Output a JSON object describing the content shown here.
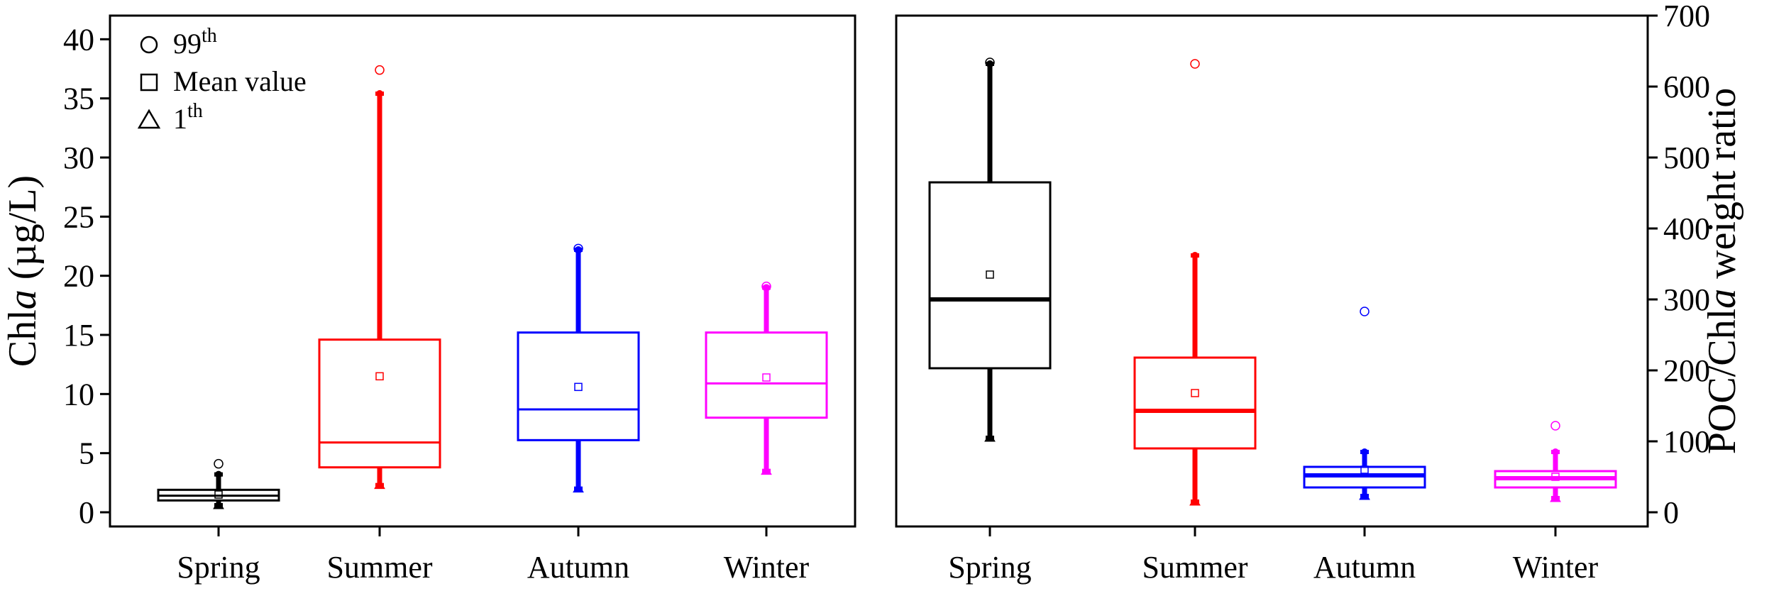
{
  "chart_data": [
    {
      "type": "box",
      "panel": "left",
      "categories": [
        "Spring",
        "Summer",
        "Autumn",
        "Winter"
      ],
      "ylabel_prefix": "Chl",
      "ylabel_italic": "a",
      "ylabel_suffix": " (µg/L)",
      "ylim": [
        -1.2,
        42
      ],
      "yticks": [
        0,
        5,
        10,
        15,
        20,
        25,
        30,
        35,
        40
      ],
      "ytick_labels": [
        "0",
        "5",
        "10",
        "15",
        "20",
        "25",
        "30",
        "35",
        "40"
      ],
      "axis_side": "left",
      "legend": {
        "placement": "top-left",
        "items": [
          {
            "marker": "circle",
            "label": "99",
            "sup": "th"
          },
          {
            "marker": "square",
            "label": "Mean value",
            "sup": ""
          },
          {
            "marker": "triangle",
            "label": "1",
            "sup": "th"
          }
        ]
      },
      "boxes": [
        {
          "name": "Spring",
          "color": "#000000",
          "q1": 1.0,
          "median": 1.4,
          "q3": 1.9,
          "whisker_low": 0.6,
          "whisker_high": 3.2,
          "mean": 1.5,
          "p99": 4.1,
          "p1": 0.6,
          "heavy_median": false
        },
        {
          "name": "Summer",
          "color": "#ff0000",
          "q1": 3.8,
          "median": 5.9,
          "q3": 14.6,
          "whisker_low": 2.3,
          "whisker_high": 35.4,
          "mean": 11.5,
          "p99": 37.4,
          "p1": 2.3,
          "heavy_median": false
        },
        {
          "name": "Autumn",
          "color": "#0000ff",
          "q1": 6.1,
          "median": 8.7,
          "q3": 15.2,
          "whisker_low": 2.0,
          "whisker_high": 22.2,
          "mean": 10.6,
          "p99": 22.3,
          "p1": 2.0,
          "heavy_median": false
        },
        {
          "name": "Winter",
          "color": "#ff00ff",
          "q1": 8.0,
          "median": 10.9,
          "q3": 15.2,
          "whisker_low": 3.5,
          "whisker_high": 19.0,
          "mean": 11.4,
          "p99": 19.1,
          "p1": 3.5,
          "heavy_median": false
        }
      ]
    },
    {
      "type": "box",
      "panel": "right",
      "categories": [
        "Spring",
        "Summer",
        "Autumn",
        "Winter"
      ],
      "ylabel_prefix": "POC/Chl",
      "ylabel_italic": "a",
      "ylabel_suffix": " weight ratio",
      "ylim": [
        -20,
        700
      ],
      "yticks": [
        0,
        100,
        200,
        300,
        400,
        500,
        600,
        700
      ],
      "ytick_labels": [
        "0",
        "100",
        "200",
        "300",
        "400",
        "500",
        "600",
        "700"
      ],
      "axis_side": "right",
      "boxes": [
        {
          "name": "Spring",
          "color": "#000000",
          "q1": 203,
          "median": 300,
          "q3": 465,
          "whisker_low": 105,
          "whisker_high": 632,
          "mean": 335,
          "p99": 634,
          "p1": 105,
          "heavy_median": true
        },
        {
          "name": "Summer",
          "color": "#ff0000",
          "q1": 90,
          "median": 143,
          "q3": 218,
          "whisker_low": 15,
          "whisker_high": 362,
          "mean": 168,
          "p99": 632,
          "p1": 15,
          "heavy_median": true
        },
        {
          "name": "Autumn",
          "color": "#0000ff",
          "q1": 35,
          "median": 52,
          "q3": 64,
          "whisker_low": 23,
          "whisker_high": 85,
          "mean": 60,
          "p99": 283,
          "p1": 23,
          "heavy_median": true
        },
        {
          "name": "Winter",
          "color": "#ff00ff",
          "q1": 35,
          "median": 48,
          "q3": 58,
          "whisker_low": 20,
          "whisker_high": 85,
          "mean": 50,
          "p99": 122,
          "p1": 20,
          "heavy_median": true
        }
      ]
    }
  ]
}
